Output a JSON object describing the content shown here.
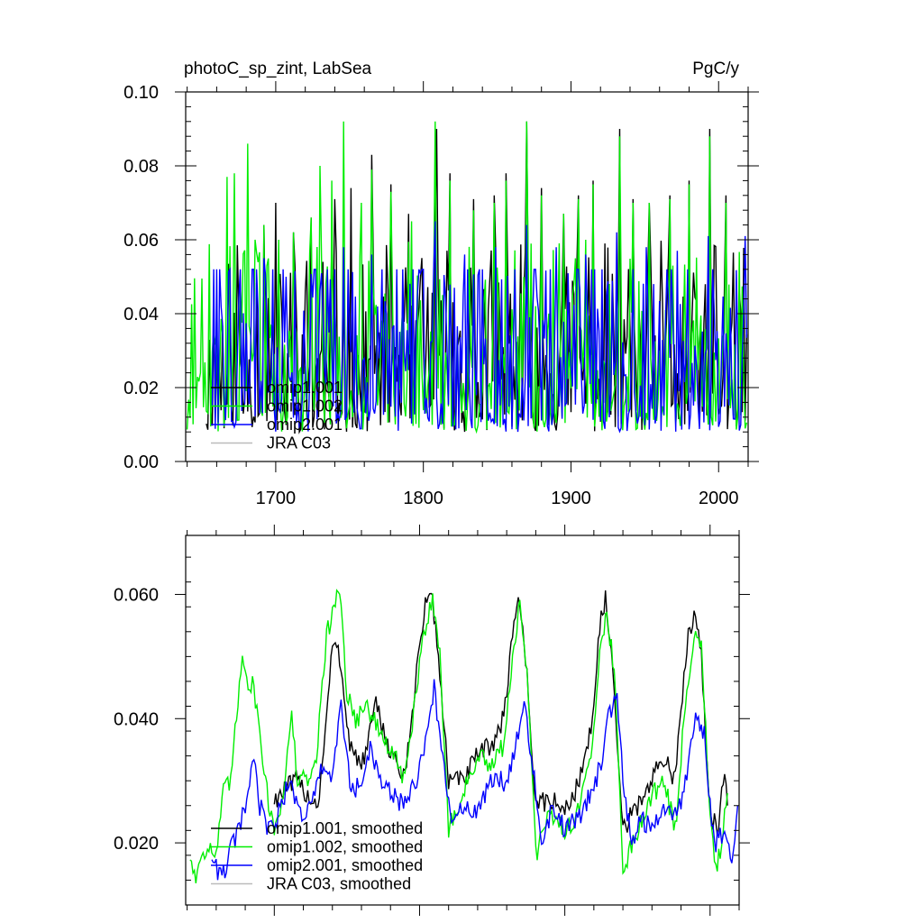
{
  "chart_data": [
    {
      "type": "line",
      "title_left": "photoC_sp_zint, LabSea",
      "title_right": "PgC/y",
      "xlabel": "",
      "ylabel": "",
      "xlim": [
        1639,
        2020
      ],
      "ylim": [
        0.0,
        0.1
      ],
      "x_ticks": [
        1700,
        1800,
        1900,
        2000
      ],
      "x_tick_labels": [
        "1700",
        "1800",
        "1900",
        "2000"
      ],
      "y_ticks": [
        0.0,
        0.02,
        0.04,
        0.06,
        0.08,
        0.1
      ],
      "y_tick_labels": [
        "0.00",
        "0.02",
        "0.04",
        "0.06",
        "0.08",
        "0.10"
      ],
      "grid": false,
      "legend_position": "bottom-left",
      "colors": {
        "omip1_001": "#000000",
        "omip1_002": "#00ee00",
        "omip2_001": "#0000ff",
        "jra_c03": "#bbbbbb"
      },
      "series": [
        {
          "name": "omip1.001",
          "color": "#000000",
          "x_start": 1653,
          "x_end": 2019,
          "peaks": [
            [
              1692,
              0.064
            ],
            [
              1700,
              0.07
            ],
            [
              1712,
              0.062
            ],
            [
              1724,
              0.066
            ],
            [
              1740,
              0.071
            ],
            [
              1751,
              0.074
            ],
            [
              1765,
              0.083
            ],
            [
              1778,
              0.075
            ],
            [
              1790,
              0.067
            ],
            [
              1809,
              0.09
            ],
            [
              1818,
              0.078
            ],
            [
              1834,
              0.071
            ],
            [
              1848,
              0.072
            ],
            [
              1856,
              0.078
            ],
            [
              1870,
              0.092
            ],
            [
              1880,
              0.074
            ],
            [
              1895,
              0.067
            ],
            [
              1905,
              0.072
            ],
            [
              1915,
              0.076
            ],
            [
              1933,
              0.09
            ],
            [
              1942,
              0.071
            ],
            [
              1953,
              0.07
            ],
            [
              1967,
              0.072
            ],
            [
              1980,
              0.076
            ],
            [
              1994,
              0.09
            ],
            [
              2005,
              0.072
            ]
          ]
        },
        {
          "name": "omip1.002",
          "color": "#00ee00",
          "x_start": 1640,
          "x_end": 2019,
          "peaks": [
            [
              1658,
              0.036
            ],
            [
              1667,
              0.077
            ],
            [
              1672,
              0.078
            ],
            [
              1681,
              0.086
            ],
            [
              1686,
              0.06
            ],
            [
              1692,
              0.064
            ],
            [
              1702,
              0.06
            ],
            [
              1712,
              0.062
            ],
            [
              1724,
              0.066
            ],
            [
              1730,
              0.08
            ],
            [
              1738,
              0.076
            ],
            [
              1746,
              0.092
            ],
            [
              1758,
              0.07
            ],
            [
              1765,
              0.079
            ],
            [
              1778,
              0.073
            ],
            [
              1792,
              0.065
            ],
            [
              1808,
              0.092
            ],
            [
              1818,
              0.076
            ],
            [
              1834,
              0.068
            ],
            [
              1848,
              0.07
            ],
            [
              1856,
              0.076
            ],
            [
              1870,
              0.092
            ],
            [
              1880,
              0.072
            ],
            [
              1895,
              0.067
            ],
            [
              1905,
              0.071
            ],
            [
              1915,
              0.075
            ],
            [
              1933,
              0.088
            ],
            [
              1942,
              0.07
            ],
            [
              1953,
              0.07
            ],
            [
              1967,
              0.071
            ],
            [
              1980,
              0.075
            ],
            [
              1994,
              0.088
            ],
            [
              2005,
              0.07
            ]
          ]
        },
        {
          "name": "omip2.001",
          "color": "#0000ff",
          "x_start": 1657,
          "x_end": 2019,
          "peaks": [
            [
              1676,
              0.052
            ],
            [
              1692,
              0.055
            ],
            [
              1707,
              0.05
            ],
            [
              1726,
              0.052
            ],
            [
              1746,
              0.058
            ],
            [
              1765,
              0.056
            ],
            [
              1786,
              0.052
            ],
            [
              1808,
              0.065
            ],
            [
              1828,
              0.056
            ],
            [
              1849,
              0.058
            ],
            [
              1870,
              0.064
            ],
            [
              1890,
              0.058
            ],
            [
              1910,
              0.056
            ],
            [
              1931,
              0.062
            ],
            [
              1951,
              0.058
            ],
            [
              1972,
              0.057
            ],
            [
              1993,
              0.061
            ],
            [
              2018,
              0.061
            ]
          ]
        },
        {
          "name": "JRA C03",
          "color": "#bbbbbb"
        }
      ]
    },
    {
      "type": "line",
      "title_left": "",
      "title_right": "",
      "xlabel": "",
      "ylabel": "",
      "xlim": [
        1639,
        2020
      ],
      "ylim": [
        0.01,
        0.0695
      ],
      "x_ticks": [
        1700,
        1800,
        1900,
        2000
      ],
      "x_tick_labels": [
        "",
        "",
        "",
        ""
      ],
      "y_ticks": [
        0.02,
        0.04,
        0.06
      ],
      "y_tick_labels": [
        "0.020",
        "0.040",
        "0.060"
      ],
      "grid": false,
      "legend_position": "bottom-left",
      "series": [
        {
          "name": "omip1.001, smoothed",
          "color": "#000000",
          "points": [
            [
              1700,
              0.027
            ],
            [
              1715,
              0.03
            ],
            [
              1722,
              0.028
            ],
            [
              1730,
              0.026
            ],
            [
              1736,
              0.04
            ],
            [
              1740,
              0.052
            ],
            [
              1745,
              0.05
            ],
            [
              1748,
              0.044
            ],
            [
              1752,
              0.036
            ],
            [
              1760,
              0.032
            ],
            [
              1770,
              0.042
            ],
            [
              1778,
              0.036
            ],
            [
              1790,
              0.03
            ],
            [
              1798,
              0.048
            ],
            [
              1804,
              0.058
            ],
            [
              1808,
              0.061
            ],
            [
              1813,
              0.05
            ],
            [
              1820,
              0.03
            ],
            [
              1830,
              0.03
            ],
            [
              1840,
              0.034
            ],
            [
              1850,
              0.036
            ],
            [
              1858,
              0.04
            ],
            [
              1864,
              0.054
            ],
            [
              1868,
              0.06
            ],
            [
              1873,
              0.05
            ],
            [
              1880,
              0.026
            ],
            [
              1890,
              0.027
            ],
            [
              1900,
              0.025
            ],
            [
              1910,
              0.03
            ],
            [
              1918,
              0.038
            ],
            [
              1924,
              0.055
            ],
            [
              1928,
              0.059
            ],
            [
              1932,
              0.05
            ],
            [
              1940,
              0.022
            ],
            [
              1950,
              0.026
            ],
            [
              1960,
              0.03
            ],
            [
              1968,
              0.034
            ],
            [
              1976,
              0.03
            ],
            [
              1984,
              0.052
            ],
            [
              1990,
              0.058
            ],
            [
              1994,
              0.05
            ],
            [
              2000,
              0.025
            ],
            [
              2005,
              0.022
            ],
            [
              2010,
              0.032
            ],
            [
              2012,
              0.026
            ]
          ]
        },
        {
          "name": "omip1.002, smoothed",
          "color": "#00ee00",
          "points": [
            [
              1642,
              0.018
            ],
            [
              1646,
              0.014
            ],
            [
              1650,
              0.019
            ],
            [
              1655,
              0.019
            ],
            [
              1660,
              0.018
            ],
            [
              1665,
              0.028
            ],
            [
              1670,
              0.03
            ],
            [
              1674,
              0.04
            ],
            [
              1678,
              0.051
            ],
            [
              1682,
              0.046
            ],
            [
              1686,
              0.045
            ],
            [
              1690,
              0.038
            ],
            [
              1695,
              0.028
            ],
            [
              1700,
              0.022
            ],
            [
              1706,
              0.028
            ],
            [
              1712,
              0.04
            ],
            [
              1716,
              0.03
            ],
            [
              1722,
              0.03
            ],
            [
              1728,
              0.032
            ],
            [
              1732,
              0.042
            ],
            [
              1736,
              0.054
            ],
            [
              1741,
              0.057
            ],
            [
              1744,
              0.062
            ],
            [
              1747,
              0.055
            ],
            [
              1750,
              0.044
            ],
            [
              1756,
              0.04
            ],
            [
              1764,
              0.042
            ],
            [
              1772,
              0.038
            ],
            [
              1780,
              0.035
            ],
            [
              1790,
              0.03
            ],
            [
              1798,
              0.045
            ],
            [
              1804,
              0.055
            ],
            [
              1809,
              0.06
            ],
            [
              1814,
              0.05
            ],
            [
              1820,
              0.022
            ],
            [
              1830,
              0.028
            ],
            [
              1840,
              0.034
            ],
            [
              1850,
              0.032
            ],
            [
              1858,
              0.036
            ],
            [
              1864,
              0.05
            ],
            [
              1869,
              0.058
            ],
            [
              1874,
              0.048
            ],
            [
              1880,
              0.018
            ],
            [
              1890,
              0.025
            ],
            [
              1900,
              0.022
            ],
            [
              1910,
              0.025
            ],
            [
              1918,
              0.035
            ],
            [
              1924,
              0.05
            ],
            [
              1929,
              0.057
            ],
            [
              1934,
              0.048
            ],
            [
              1940,
              0.016
            ],
            [
              1950,
              0.022
            ],
            [
              1960,
              0.028
            ],
            [
              1968,
              0.03
            ],
            [
              1976,
              0.022
            ],
            [
              1984,
              0.045
            ],
            [
              1990,
              0.055
            ],
            [
              1994,
              0.052
            ],
            [
              2000,
              0.024
            ],
            [
              2004,
              0.015
            ],
            [
              2008,
              0.02
            ],
            [
              2012,
              0.028
            ]
          ]
        },
        {
          "name": "omip2.001, smoothed",
          "color": "#0000ff",
          "points": [
            [
              1657,
              0.018
            ],
            [
              1664,
              0.014
            ],
            [
              1670,
              0.019
            ],
            [
              1676,
              0.022
            ],
            [
              1682,
              0.028
            ],
            [
              1686,
              0.033
            ],
            [
              1690,
              0.026
            ],
            [
              1696,
              0.022
            ],
            [
              1702,
              0.024
            ],
            [
              1710,
              0.03
            ],
            [
              1716,
              0.026
            ],
            [
              1722,
              0.024
            ],
            [
              1728,
              0.028
            ],
            [
              1734,
              0.033
            ],
            [
              1740,
              0.03
            ],
            [
              1746,
              0.042
            ],
            [
              1752,
              0.03
            ],
            [
              1760,
              0.028
            ],
            [
              1766,
              0.036
            ],
            [
              1772,
              0.03
            ],
            [
              1780,
              0.028
            ],
            [
              1790,
              0.026
            ],
            [
              1798,
              0.03
            ],
            [
              1804,
              0.036
            ],
            [
              1810,
              0.045
            ],
            [
              1815,
              0.036
            ],
            [
              1822,
              0.022
            ],
            [
              1830,
              0.026
            ],
            [
              1840,
              0.025
            ],
            [
              1850,
              0.03
            ],
            [
              1860,
              0.03
            ],
            [
              1866,
              0.036
            ],
            [
              1872,
              0.043
            ],
            [
              1877,
              0.034
            ],
            [
              1884,
              0.02
            ],
            [
              1892,
              0.026
            ],
            [
              1900,
              0.022
            ],
            [
              1910,
              0.024
            ],
            [
              1918,
              0.028
            ],
            [
              1924,
              0.032
            ],
            [
              1930,
              0.04
            ],
            [
              1936,
              0.045
            ],
            [
              1940,
              0.03
            ],
            [
              1946,
              0.02
            ],
            [
              1952,
              0.024
            ],
            [
              1960,
              0.022
            ],
            [
              1968,
              0.026
            ],
            [
              1976,
              0.024
            ],
            [
              1984,
              0.03
            ],
            [
              1990,
              0.04
            ],
            [
              1996,
              0.038
            ],
            [
              2000,
              0.026
            ],
            [
              2004,
              0.02
            ],
            [
              2010,
              0.022
            ],
            [
              2015,
              0.018
            ],
            [
              2019,
              0.026
            ]
          ]
        },
        {
          "name": "JRA C03, smoothed",
          "color": "#bbbbbb"
        }
      ]
    }
  ]
}
